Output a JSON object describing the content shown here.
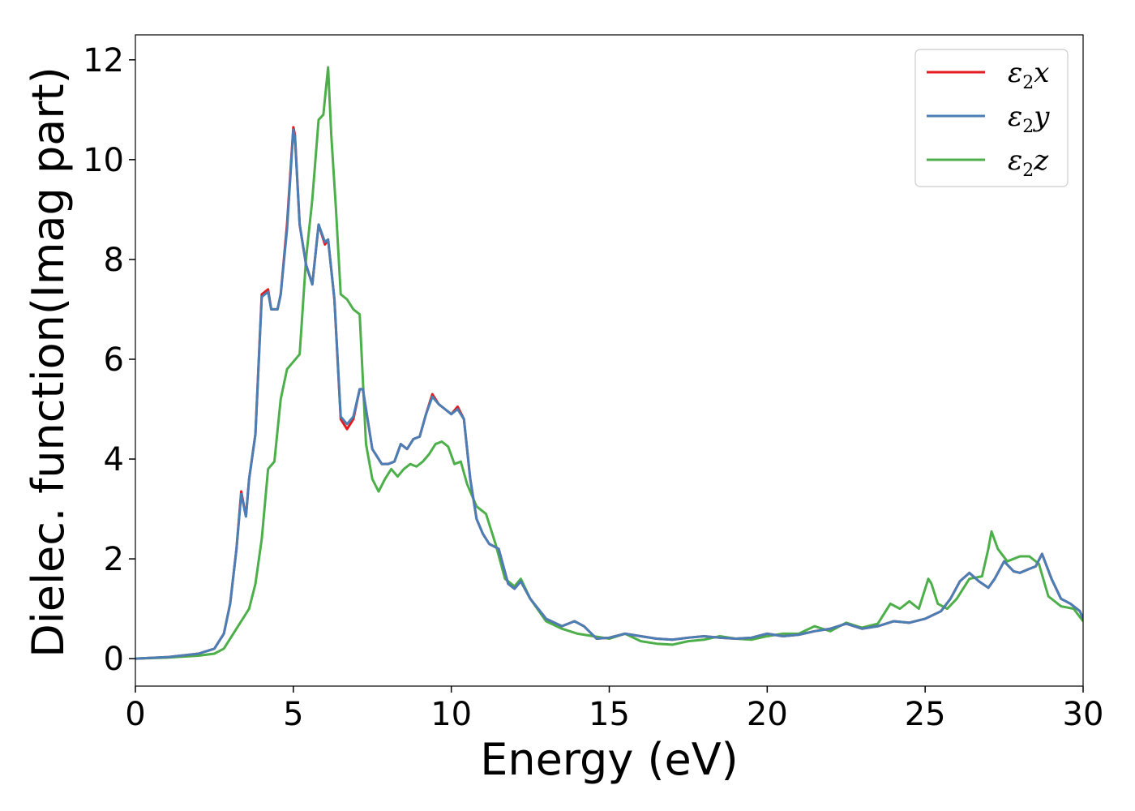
{
  "chart_data": {
    "type": "line",
    "title": "",
    "xlabel": "Energy (eV)",
    "ylabel": "Dielec. function(Imag part)",
    "xlim": [
      0,
      30
    ],
    "ylim": [
      -0.55,
      12.5
    ],
    "xticks": [
      0,
      5,
      10,
      15,
      20,
      25,
      30
    ],
    "yticks": [
      0,
      2,
      4,
      6,
      8,
      10,
      12
    ],
    "grid": false,
    "legend_position": "top-right",
    "series": [
      {
        "name": "ε2x",
        "legend": {
          "main": "ε",
          "sub": "2",
          "tail": "x"
        },
        "color": "#e41a1c",
        "x": [
          0,
          1,
          2,
          2.5,
          2.8,
          3.0,
          3.2,
          3.35,
          3.5,
          3.6,
          3.8,
          4.0,
          4.1,
          4.2,
          4.3,
          4.5,
          4.6,
          4.8,
          5.0,
          5.05,
          5.2,
          5.4,
          5.6,
          5.8,
          6.0,
          6.1,
          6.3,
          6.5,
          6.7,
          6.9,
          7.1,
          7.2,
          7.5,
          7.8,
          8.0,
          8.2,
          8.4,
          8.6,
          8.8,
          9.0,
          9.2,
          9.4,
          9.6,
          9.8,
          10.0,
          10.2,
          10.4,
          10.6,
          10.8,
          11.0,
          11.2,
          11.5,
          11.8,
          12.0,
          12.2,
          12.5,
          13.0,
          13.5,
          13.9,
          14.2,
          14.6,
          15.0,
          15.5,
          16.0,
          16.5,
          17.0,
          17.5,
          18.0,
          18.5,
          19.0,
          19.5,
          20.0,
          20.5,
          21.0,
          21.5,
          22.0,
          22.5,
          23.0,
          23.5,
          24.0,
          24.5,
          25.0,
          25.5,
          25.8,
          26.1,
          26.4,
          26.7,
          27.0,
          27.2,
          27.5,
          27.8,
          28.0,
          28.3,
          28.5,
          28.7,
          29.0,
          29.3,
          29.6,
          29.9,
          30.0
        ],
        "y": [
          0,
          0.03,
          0.1,
          0.2,
          0.5,
          1.1,
          2.2,
          3.35,
          2.85,
          3.6,
          4.5,
          7.3,
          7.35,
          7.4,
          7.0,
          7.0,
          7.3,
          8.7,
          10.65,
          10.5,
          8.7,
          7.9,
          7.5,
          8.7,
          8.3,
          8.4,
          7.2,
          4.8,
          4.6,
          4.8,
          5.4,
          5.4,
          4.2,
          3.9,
          3.9,
          3.95,
          4.3,
          4.2,
          4.4,
          4.45,
          4.9,
          5.3,
          5.1,
          5.0,
          4.9,
          5.05,
          4.8,
          3.6,
          2.8,
          2.5,
          2.3,
          2.2,
          1.5,
          1.4,
          1.55,
          1.2,
          0.8,
          0.65,
          0.75,
          0.65,
          0.4,
          0.42,
          0.5,
          0.45,
          0.4,
          0.38,
          0.42,
          0.45,
          0.42,
          0.4,
          0.42,
          0.5,
          0.45,
          0.48,
          0.55,
          0.6,
          0.7,
          0.6,
          0.65,
          0.75,
          0.72,
          0.8,
          0.95,
          1.2,
          1.55,
          1.72,
          1.55,
          1.42,
          1.6,
          1.95,
          1.75,
          1.72,
          1.8,
          1.85,
          2.1,
          1.6,
          1.2,
          1.1,
          0.95,
          0.8
        ]
      },
      {
        "name": "ε2y",
        "legend": {
          "main": "ε",
          "sub": "2",
          "tail": "y"
        },
        "color": "#4a7fb5",
        "x": [
          0,
          1,
          2,
          2.5,
          2.8,
          3.0,
          3.2,
          3.35,
          3.5,
          3.6,
          3.8,
          4.0,
          4.1,
          4.2,
          4.3,
          4.5,
          4.6,
          4.8,
          5.0,
          5.05,
          5.2,
          5.4,
          5.6,
          5.8,
          6.0,
          6.1,
          6.3,
          6.5,
          6.7,
          6.9,
          7.1,
          7.2,
          7.5,
          7.8,
          8.0,
          8.2,
          8.4,
          8.6,
          8.8,
          9.0,
          9.2,
          9.4,
          9.6,
          9.8,
          10.0,
          10.2,
          10.4,
          10.6,
          10.8,
          11.0,
          11.2,
          11.5,
          11.8,
          12.0,
          12.2,
          12.5,
          13.0,
          13.5,
          13.9,
          14.2,
          14.6,
          15.0,
          15.5,
          16.0,
          16.5,
          17.0,
          17.5,
          18.0,
          18.5,
          19.0,
          19.5,
          20.0,
          20.5,
          21.0,
          21.5,
          22.0,
          22.5,
          23.0,
          23.5,
          24.0,
          24.5,
          25.0,
          25.5,
          25.8,
          26.1,
          26.4,
          26.7,
          27.0,
          27.2,
          27.5,
          27.8,
          28.0,
          28.3,
          28.5,
          28.7,
          29.0,
          29.3,
          29.6,
          29.9,
          30.0
        ],
        "y": [
          0,
          0.03,
          0.1,
          0.2,
          0.5,
          1.1,
          2.2,
          3.3,
          2.85,
          3.6,
          4.5,
          7.25,
          7.3,
          7.35,
          7.0,
          7.0,
          7.3,
          8.6,
          10.6,
          10.45,
          8.7,
          7.9,
          7.5,
          8.7,
          8.35,
          8.4,
          7.2,
          4.85,
          4.7,
          4.85,
          5.4,
          5.4,
          4.2,
          3.9,
          3.9,
          3.95,
          4.3,
          4.2,
          4.4,
          4.45,
          4.9,
          5.25,
          5.1,
          5.0,
          4.9,
          5.0,
          4.8,
          3.6,
          2.8,
          2.5,
          2.3,
          2.2,
          1.5,
          1.4,
          1.55,
          1.2,
          0.8,
          0.65,
          0.75,
          0.65,
          0.4,
          0.42,
          0.5,
          0.45,
          0.4,
          0.38,
          0.42,
          0.45,
          0.42,
          0.4,
          0.42,
          0.5,
          0.45,
          0.48,
          0.55,
          0.6,
          0.7,
          0.6,
          0.65,
          0.75,
          0.72,
          0.8,
          0.95,
          1.2,
          1.55,
          1.72,
          1.55,
          1.42,
          1.6,
          1.95,
          1.75,
          1.72,
          1.8,
          1.85,
          2.1,
          1.6,
          1.2,
          1.1,
          0.95,
          0.8
        ]
      },
      {
        "name": "ε2z",
        "legend": {
          "main": "ε",
          "sub": "2",
          "tail": "z"
        },
        "color": "#4daf4a",
        "x": [
          0,
          1,
          2,
          2.5,
          2.8,
          3.0,
          3.2,
          3.4,
          3.6,
          3.8,
          4.0,
          4.2,
          4.4,
          4.6,
          4.8,
          5.0,
          5.2,
          5.4,
          5.6,
          5.8,
          5.95,
          6.1,
          6.2,
          6.35,
          6.5,
          6.7,
          6.9,
          7.1,
          7.3,
          7.5,
          7.7,
          7.9,
          8.1,
          8.3,
          8.5,
          8.7,
          8.9,
          9.1,
          9.3,
          9.5,
          9.7,
          9.9,
          10.1,
          10.3,
          10.5,
          10.8,
          11.1,
          11.4,
          11.7,
          12.0,
          12.2,
          12.5,
          13.0,
          13.5,
          14.0,
          14.5,
          15.0,
          15.5,
          16.0,
          16.5,
          17.0,
          17.5,
          18.0,
          18.5,
          19.0,
          19.5,
          20.0,
          20.5,
          21.0,
          21.5,
          22.0,
          22.5,
          23.0,
          23.5,
          23.9,
          24.2,
          24.5,
          24.8,
          25.1,
          25.2,
          25.4,
          25.7,
          26.0,
          26.4,
          26.8,
          27.0,
          27.1,
          27.3,
          27.6,
          28.0,
          28.3,
          28.6,
          28.9,
          29.3,
          29.7,
          30.0
        ],
        "y": [
          0,
          0.02,
          0.06,
          0.1,
          0.2,
          0.4,
          0.6,
          0.8,
          1.0,
          1.5,
          2.4,
          3.8,
          3.95,
          5.2,
          5.8,
          5.95,
          6.1,
          8.0,
          9.2,
          10.8,
          10.9,
          11.85,
          10.5,
          9.0,
          7.3,
          7.2,
          7.0,
          6.9,
          4.3,
          3.6,
          3.35,
          3.6,
          3.8,
          3.65,
          3.8,
          3.9,
          3.85,
          3.95,
          4.1,
          4.3,
          4.35,
          4.25,
          3.9,
          3.95,
          3.5,
          3.05,
          2.9,
          2.3,
          1.6,
          1.45,
          1.6,
          1.2,
          0.75,
          0.6,
          0.5,
          0.45,
          0.4,
          0.5,
          0.35,
          0.3,
          0.28,
          0.35,
          0.38,
          0.45,
          0.4,
          0.38,
          0.45,
          0.5,
          0.5,
          0.65,
          0.55,
          0.72,
          0.62,
          0.7,
          1.1,
          1.0,
          1.15,
          1.0,
          1.6,
          1.5,
          1.1,
          1.0,
          1.2,
          1.6,
          1.65,
          2.2,
          2.55,
          2.2,
          1.95,
          2.05,
          2.05,
          1.9,
          1.25,
          1.05,
          1.0,
          0.75
        ]
      }
    ]
  }
}
